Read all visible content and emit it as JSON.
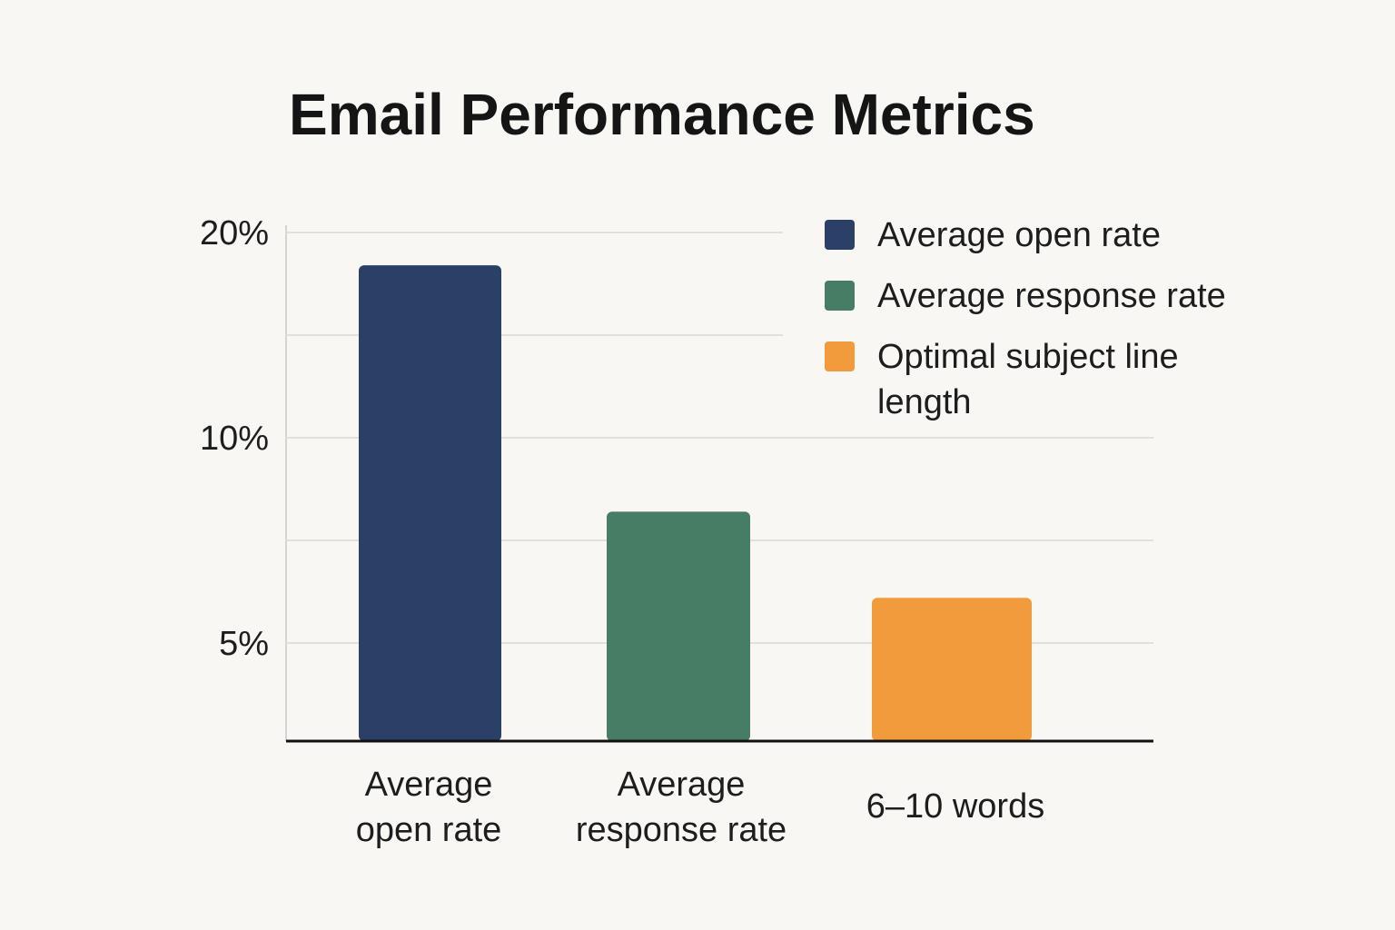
{
  "chart_data": {
    "type": "bar",
    "title": "Email Performance Metrics",
    "y_tick_labels": [
      "20%",
      "10%",
      "5%"
    ],
    "categories": [
      "Average open rate",
      "Average response rate",
      "6–10 words"
    ],
    "category_label_lines": [
      [
        "Average",
        "open rate"
      ],
      [
        "Average",
        "response rate"
      ],
      [
        "6–10 words"
      ]
    ],
    "series": [
      {
        "name": "Average open rate",
        "color": "#2a4066",
        "value": 18.4
      },
      {
        "name": "Average response rate",
        "color": "#477d65",
        "value": 8.2
      },
      {
        "name": "Optimal subject line length",
        "color": "#f29b3c",
        "value": 6.1
      }
    ],
    "values": [
      18.4,
      8.2,
      6.1
    ],
    "legend_entries": [
      {
        "label_lines": [
          "Average open rate"
        ],
        "color": "#2a4066"
      },
      {
        "label_lines": [
          "Average response rate"
        ],
        "color": "#477d65"
      },
      {
        "label_lines": [
          "Optimal subject line",
          "length"
        ],
        "color": "#f29b3c"
      }
    ],
    "ylim_note": "non-linear axis with ticks 5%, 10%, 20%",
    "grid": true,
    "legend_position": "top-right"
  }
}
